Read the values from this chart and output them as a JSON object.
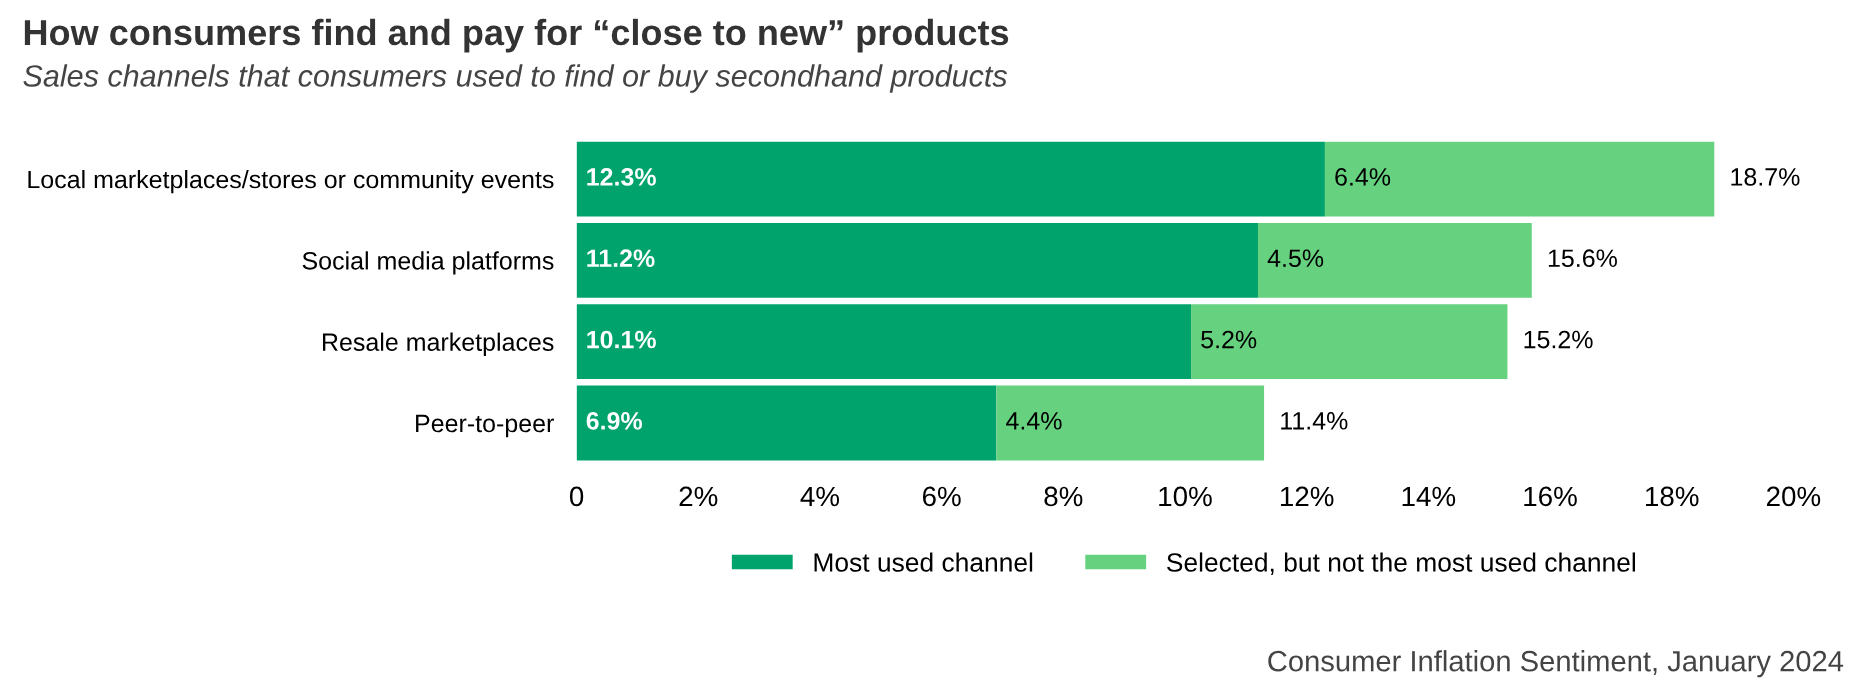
{
  "chart_data": {
    "type": "bar",
    "orientation": "horizontal",
    "stacked": true,
    "title": "How consumers find and pay for “close to new” products",
    "subtitle": "Sales channels that consumers used to find or buy secondhand products",
    "categories": [
      "Local marketplaces/stores or community events",
      "Social media platforms",
      "Resale marketplaces",
      "Peer-to-peer"
    ],
    "series": [
      {
        "name": "Most used channel",
        "color": "#00a36c",
        "values": [
          12.3,
          11.2,
          10.1,
          6.9
        ],
        "value_labels": [
          "12.3%",
          "11.2%",
          "10.1%",
          "6.9%"
        ]
      },
      {
        "name": "Selected, but not the most used channel",
        "color": "#66d17f",
        "values": [
          6.4,
          4.5,
          5.2,
          4.4
        ],
        "value_labels": [
          "6.4%",
          "4.5%",
          "5.2%",
          "4.4%"
        ]
      }
    ],
    "totals": [
      "18.7%",
      "15.6%",
      "15.2%",
      "11.4%"
    ],
    "xlim": [
      0,
      20
    ],
    "xticks": [
      0,
      {
        "value": 2,
        "label": "2%"
      },
      {
        "value": 4,
        "label": "4%"
      },
      {
        "value": 6,
        "label": "6%"
      },
      {
        "value": 8,
        "label": "8%"
      },
      {
        "value": 10,
        "label": "10%"
      },
      {
        "value": 12,
        "label": "12%"
      },
      {
        "value": 14,
        "label": "14%"
      },
      {
        "value": 16,
        "label": "16%"
      },
      {
        "value": 18,
        "label": "18%"
      },
      {
        "value": 20,
        "label": "20%"
      }
    ],
    "grid": false,
    "legend": "bottom",
    "annotations": [
      "Consumer Inflation Sentiment, January 2024"
    ]
  }
}
